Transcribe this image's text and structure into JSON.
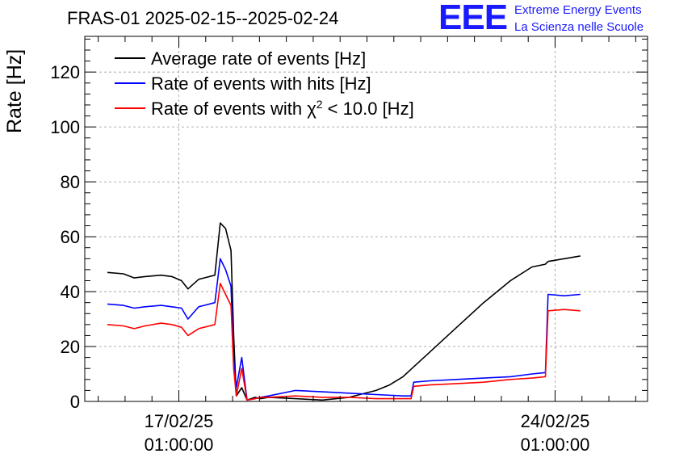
{
  "header": {
    "title": "FRAS-01 2025-02-15--2025-02-24",
    "logo_mark": "EEE",
    "logo_line1": "Extreme Energy Events",
    "logo_line2": "La Scienza nelle Scuole"
  },
  "colors": {
    "average": "#000000",
    "hits": "#0000ff",
    "chi2": "#ff0000",
    "logo": "#1a1aff",
    "grid": "#999999"
  },
  "chart_data": {
    "type": "line",
    "ylabel": "Rate [Hz]",
    "ylim": [
      0,
      133
    ],
    "xlim": [
      15.08,
      25.55
    ],
    "y_ticks": [
      0,
      20,
      40,
      60,
      80,
      100,
      120
    ],
    "x_ticks": [
      {
        "x": 16.83,
        "line1": "17/02/25",
        "line2": "01:00:00"
      },
      {
        "x": 23.83,
        "line1": "24/02/25",
        "line2": "01:00:00"
      }
    ],
    "grid": true,
    "legend": "top-left",
    "legend_entries": [
      {
        "series": "average",
        "prefix": "Average rate of events [Hz]",
        "sup": "",
        "suffix": ""
      },
      {
        "series": "hits",
        "prefix": "Rate of events with hits [Hz]",
        "sup": "",
        "suffix": ""
      },
      {
        "series": "chi2",
        "prefix": "Rate of events with χ",
        "sup": "2",
        "suffix": " < 10.0 [Hz]"
      }
    ],
    "series": [
      {
        "key": "average",
        "x": [
          15.5,
          15.8,
          16.0,
          16.2,
          16.5,
          16.7,
          16.88,
          17.0,
          17.2,
          17.3,
          17.5,
          17.6,
          17.7,
          17.8,
          17.85,
          17.9,
          18.0,
          18.1,
          18.25,
          18.35,
          18.5,
          19.0,
          19.5,
          20.0,
          20.5,
          20.75,
          21.0,
          21.5,
          22.0,
          22.5,
          23.0,
          23.4,
          23.65,
          23.7,
          24.0,
          24.3
        ],
        "y": [
          47,
          46.5,
          45,
          45.5,
          46,
          45.5,
          44,
          41,
          44.5,
          45,
          46,
          65,
          63,
          55,
          24,
          2,
          5,
          0.5,
          1.5,
          1,
          1.5,
          1,
          0.5,
          1.5,
          4,
          6,
          9,
          18,
          27,
          36,
          44,
          49,
          50,
          51,
          52,
          53
        ]
      },
      {
        "key": "hits",
        "x": [
          15.5,
          15.8,
          16.0,
          16.2,
          16.5,
          16.7,
          16.88,
          17.0,
          17.2,
          17.3,
          17.5,
          17.6,
          17.7,
          17.8,
          17.85,
          17.9,
          18.0,
          18.1,
          18.25,
          18.35,
          18.5,
          19.0,
          19.5,
          20.0,
          20.5,
          21.0,
          21.15,
          21.2,
          21.5,
          22.0,
          22.5,
          23.0,
          23.4,
          23.65,
          23.7,
          24.0,
          24.3
        ],
        "y": [
          35.5,
          35,
          34,
          34.5,
          35,
          34.5,
          34,
          30,
          34.5,
          35,
          36,
          52,
          48,
          42,
          15,
          5,
          16,
          0.5,
          1,
          1.5,
          2,
          4,
          3.5,
          3,
          2.5,
          2,
          2,
          7,
          7.5,
          8,
          8.5,
          9,
          10,
          10.5,
          39,
          38.5,
          39
        ]
      },
      {
        "key": "chi2",
        "x": [
          15.5,
          15.8,
          16.0,
          16.2,
          16.5,
          16.7,
          16.88,
          17.0,
          17.2,
          17.3,
          17.5,
          17.6,
          17.7,
          17.8,
          17.85,
          17.9,
          18.0,
          18.1,
          18.25,
          18.35,
          18.5,
          19.0,
          19.5,
          20.0,
          20.5,
          21.0,
          21.15,
          21.2,
          21.5,
          22.0,
          22.5,
          23.0,
          23.4,
          23.65,
          23.7,
          24.0,
          24.3
        ],
        "y": [
          28,
          27.5,
          26.5,
          27.5,
          28.5,
          28,
          27,
          24,
          26.5,
          27,
          28,
          43,
          39,
          35,
          12,
          2,
          12,
          0.5,
          1,
          1.5,
          1.5,
          2,
          1.5,
          1.5,
          1,
          1,
          1,
          5.5,
          6,
          6.5,
          7,
          8,
          8.5,
          9,
          33,
          33.5,
          33
        ]
      }
    ]
  }
}
